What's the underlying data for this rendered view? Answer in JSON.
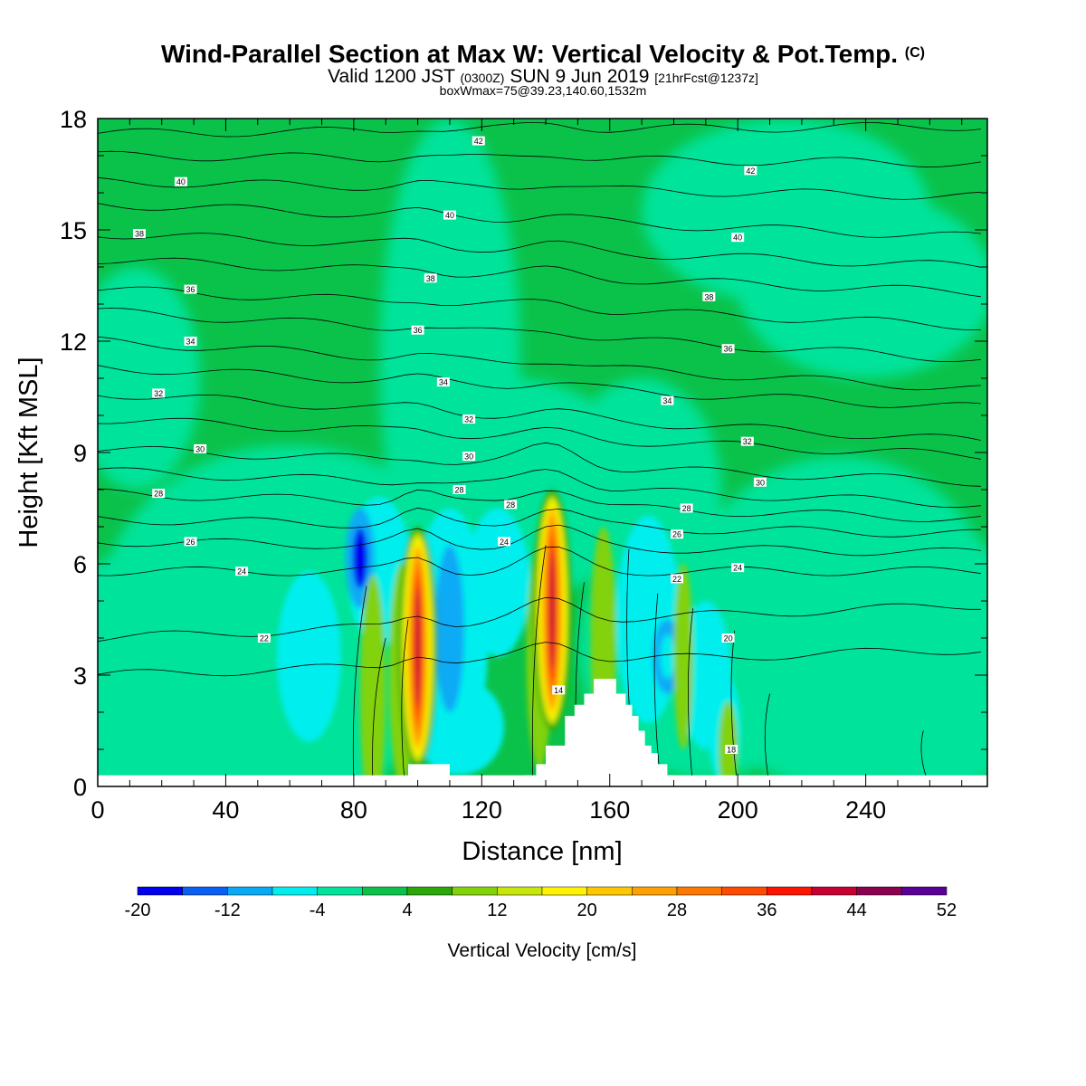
{
  "title": {
    "main": "Wind-Parallel Section at Max W: Vertical Velocity & Pot.Temp.",
    "copyright": "(C)",
    "valid_prefix": "Valid 1200 JST",
    "valid_utc": "(0300Z)",
    "valid_date": "SUN 9 Jun 2019",
    "forecast": "[21hrFcst@1237z]",
    "box_info": "boxWmax=75@39.23,140.60,1532m"
  },
  "colors": {
    "background_field": "#0ac24a",
    "scale": [
      "#0000ee",
      "#0a5ff5",
      "#09aaf5",
      "#00eeee",
      "#00e39a",
      "#0ac24a",
      "#2aa80a",
      "#82d20a",
      "#c8e60a",
      "#fff200",
      "#fec800",
      "#fea000",
      "#ff7800",
      "#ff4a00",
      "#ff1400",
      "#c80032",
      "#8c0050",
      "#5a0096"
    ]
  },
  "chart_data": {
    "type": "heatmap",
    "xlabel": "Distance [nm]",
    "ylabel": "Height [Kft MSL]",
    "xlim": [
      0,
      278
    ],
    "ylim": [
      0,
      18
    ],
    "x_ticks": [
      "0",
      "40",
      "80",
      "120",
      "160",
      "200",
      "240"
    ],
    "x_tick_values": [
      0,
      40,
      80,
      120,
      160,
      200,
      240
    ],
    "y_ticks": [
      "0",
      "3",
      "6",
      "9",
      "12",
      "15",
      "18"
    ],
    "y_tick_values": [
      0,
      3,
      6,
      9,
      12,
      15,
      18
    ],
    "colorbar": {
      "label": "Vertical Velocity [cm/s]",
      "min": -20,
      "max": 52,
      "step": 4,
      "tick_labels": [
        "-20",
        "-12",
        "-4",
        "4",
        "12",
        "20",
        "28",
        "36",
        "44",
        "52"
      ],
      "tick_values": [
        -20,
        -12,
        -4,
        4,
        12,
        20,
        28,
        36,
        44,
        52
      ]
    },
    "updrafts": [
      {
        "x": 100,
        "y_range": [
          0.5,
          7.0
        ],
        "peak": 40
      },
      {
        "x": 142,
        "y_range": [
          1.5,
          8.0
        ],
        "peak": 40
      }
    ],
    "downdrafts": [
      {
        "x": 82,
        "y_range": [
          4.8,
          7.5
        ],
        "peak": -20
      },
      {
        "x": 110,
        "y_range": [
          2.0,
          6.5
        ],
        "peak": -12
      },
      {
        "x": 178,
        "y_range": [
          2.5,
          4.5
        ],
        "peak": -8
      }
    ],
    "terrain": [
      [
        97,
        0
      ],
      [
        97,
        0.6
      ],
      [
        110,
        0.6
      ],
      [
        110,
        0
      ],
      [
        133,
        0
      ],
      [
        133,
        0.3
      ],
      [
        137,
        0.3
      ],
      [
        137,
        0.6
      ],
      [
        140,
        0.6
      ],
      [
        140,
        1.1
      ],
      [
        146,
        1.1
      ],
      [
        146,
        1.9
      ],
      [
        149,
        1.9
      ],
      [
        149,
        2.2
      ],
      [
        152,
        2.2
      ],
      [
        152,
        2.5
      ],
      [
        155,
        2.5
      ],
      [
        155,
        2.9
      ],
      [
        162,
        2.9
      ],
      [
        162,
        2.5
      ],
      [
        165,
        2.5
      ],
      [
        165,
        2.2
      ],
      [
        167,
        2.2
      ],
      [
        167,
        1.9
      ],
      [
        169,
        1.9
      ],
      [
        169,
        1.5
      ],
      [
        171,
        1.5
      ],
      [
        171,
        1.1
      ],
      [
        173,
        1.1
      ],
      [
        173,
        0.9
      ],
      [
        175,
        0.9
      ],
      [
        175,
        0.6
      ],
      [
        178,
        0.6
      ],
      [
        178,
        0.3
      ],
      [
        180,
        0.3
      ],
      [
        180,
        0
      ]
    ],
    "isentropes": [
      {
        "label": "42",
        "y_west": 17.6,
        "y_east": 17.8
      },
      {
        "label": "42",
        "y_west": 17.0,
        "y_east": 16.8
      },
      {
        "label": "40",
        "y_west": 16.3,
        "y_east": 15.9
      },
      {
        "label": "40",
        "y_west": 15.7,
        "y_east": 14.8
      },
      {
        "label": "38",
        "y_west": 14.9,
        "y_east": 14.0
      },
      {
        "label": "38",
        "y_west": 14.2,
        "y_east": 13.3
      },
      {
        "label": "36",
        "y_west": 13.4,
        "y_east": 12.4
      },
      {
        "label": "36",
        "y_west": 12.8,
        "y_east": 11.5
      },
      {
        "label": "34",
        "y_west": 12.0,
        "y_east": 10.7
      },
      {
        "label": "34",
        "y_west": 11.3,
        "y_east": 10.2
      },
      {
        "label": "32",
        "y_west": 10.6,
        "y_east": 9.3
      },
      {
        "label": "32",
        "y_west": 9.9,
        "y_east": 8.9
      },
      {
        "label": "30",
        "y_west": 9.1,
        "y_east": 8.2
      },
      {
        "label": "30",
        "y_west": 8.5,
        "y_east": 7.6
      },
      {
        "label": "28",
        "y_west": 7.9,
        "y_east": 7.2
      },
      {
        "label": "28",
        "y_west": 7.2,
        "y_east": 6.8
      },
      {
        "label": "26",
        "y_west": 6.6,
        "y_east": 6.3
      },
      {
        "label": "24",
        "y_west": 5.8,
        "y_east": 5.8
      },
      {
        "label": "22",
        "y_west": 4.0,
        "y_east": 4.9
      },
      {
        "label": "20",
        "y_west": 3.0,
        "y_east": 3.7
      }
    ],
    "contour_labels": [
      {
        "text": "42",
        "x": 119,
        "y": 17.4
      },
      {
        "text": "42",
        "x": 204,
        "y": 16.6
      },
      {
        "text": "40",
        "x": 26,
        "y": 16.3
      },
      {
        "text": "40",
        "x": 110,
        "y": 15.4
      },
      {
        "text": "40",
        "x": 200,
        "y": 14.8
      },
      {
        "text": "38",
        "x": 13,
        "y": 14.9
      },
      {
        "text": "38",
        "x": 104,
        "y": 13.7
      },
      {
        "text": "38",
        "x": 191,
        "y": 13.2
      },
      {
        "text": "36",
        "x": 29,
        "y": 13.4
      },
      {
        "text": "36",
        "x": 100,
        "y": 12.3
      },
      {
        "text": "36",
        "x": 197,
        "y": 11.8
      },
      {
        "text": "34",
        "x": 29,
        "y": 12.0
      },
      {
        "text": "34",
        "x": 108,
        "y": 10.9
      },
      {
        "text": "34",
        "x": 178,
        "y": 10.4
      },
      {
        "text": "32",
        "x": 19,
        "y": 10.6
      },
      {
        "text": "32",
        "x": 116,
        "y": 9.9
      },
      {
        "text": "32",
        "x": 203,
        "y": 9.3
      },
      {
        "text": "30",
        "x": 32,
        "y": 9.1
      },
      {
        "text": "30",
        "x": 116,
        "y": 8.9
      },
      {
        "text": "30",
        "x": 207,
        "y": 8.2
      },
      {
        "text": "28",
        "x": 19,
        "y": 7.9
      },
      {
        "text": "28",
        "x": 113,
        "y": 8.0
      },
      {
        "text": "28",
        "x": 129,
        "y": 7.6
      },
      {
        "text": "28",
        "x": 184,
        "y": 7.5
      },
      {
        "text": "26",
        "x": 29,
        "y": 6.6
      },
      {
        "text": "26",
        "x": 181,
        "y": 6.8
      },
      {
        "text": "24",
        "x": 45,
        "y": 5.8
      },
      {
        "text": "24",
        "x": 127,
        "y": 6.6
      },
      {
        "text": "24",
        "x": 200,
        "y": 5.9
      },
      {
        "text": "22",
        "x": 52,
        "y": 4.0
      },
      {
        "text": "22",
        "x": 181,
        "y": 5.6
      },
      {
        "text": "20",
        "x": 197,
        "y": 4.0
      },
      {
        "text": "14",
        "x": 144,
        "y": 2.6
      },
      {
        "text": "18",
        "x": 198,
        "y": 1.0
      }
    ]
  }
}
